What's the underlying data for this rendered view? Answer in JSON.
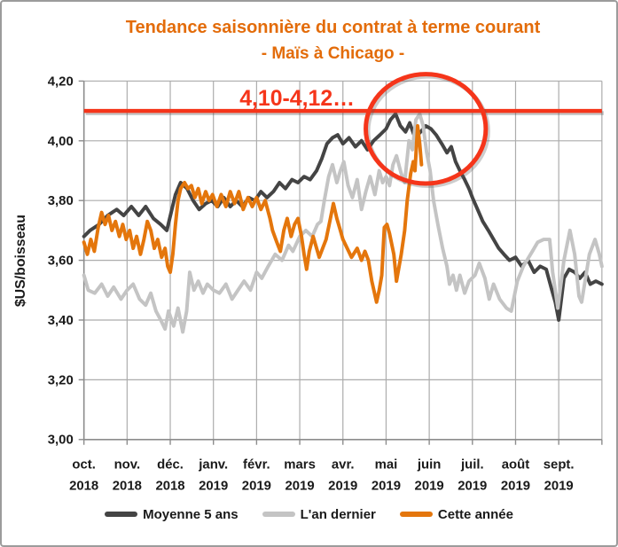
{
  "chart_data": {
    "type": "line",
    "title": "Tendance saisonnière du contrat à terme courant",
    "subtitle": "- Maïs à Chicago -",
    "title_color": "#E36C0A",
    "ylabel": "$US/boisseau",
    "ylim": [
      3.0,
      4.2
    ],
    "ytick_step": 0.2,
    "ytick_labels": [
      "4,20",
      "4,00",
      "3,80",
      "3,60",
      "3,40",
      "3,20",
      "3,00"
    ],
    "x_unit": "months (oct. 2018 → sept. 2019)",
    "x_months": [
      "oct.",
      "nov.",
      "déc.",
      "janv.",
      "févr.",
      "mars",
      "avr.",
      "mai",
      "juin",
      "juil.",
      "août",
      "sept."
    ],
    "x_years": [
      "2018",
      "2018",
      "2018",
      "2019",
      "2019",
      "2019",
      "2019",
      "2019",
      "2019",
      "2019",
      "2019",
      "2019"
    ],
    "grid": true,
    "legend_position": "bottom",
    "grid_color": "#ACACAC",
    "axis_color": "#8C8C8C",
    "text_color": "#1a1a1a",
    "reference_line": {
      "label": "4,10-4,12…",
      "value": 4.1,
      "color": "#F5351A"
    },
    "highlight_ellipse": {
      "x_center_month": 7.92,
      "y_center_value": 4.04,
      "x_radius_months": 1.39,
      "y_radius_value": 0.183,
      "color": "#F5351A"
    },
    "series": [
      {
        "name": "Moyenne 5 ans",
        "color": "#444444",
        "points": [
          [
            0,
            3.68
          ],
          [
            0.14,
            3.7
          ],
          [
            0.35,
            3.72
          ],
          [
            0.55,
            3.75
          ],
          [
            0.76,
            3.77
          ],
          [
            0.92,
            3.75
          ],
          [
            1.1,
            3.78
          ],
          [
            1.27,
            3.75
          ],
          [
            1.43,
            3.78
          ],
          [
            1.61,
            3.74
          ],
          [
            1.78,
            3.72
          ],
          [
            1.92,
            3.7
          ],
          [
            2.02,
            3.76
          ],
          [
            2.12,
            3.82
          ],
          [
            2.24,
            3.86
          ],
          [
            2.39,
            3.84
          ],
          [
            2.53,
            3.8
          ],
          [
            2.67,
            3.77
          ],
          [
            2.82,
            3.79
          ],
          [
            2.96,
            3.8
          ],
          [
            3.1,
            3.78
          ],
          [
            3.24,
            3.81
          ],
          [
            3.39,
            3.78
          ],
          [
            3.53,
            3.8
          ],
          [
            3.67,
            3.78
          ],
          [
            3.82,
            3.81
          ],
          [
            3.96,
            3.8
          ],
          [
            4.1,
            3.83
          ],
          [
            4.24,
            3.81
          ],
          [
            4.39,
            3.83
          ],
          [
            4.53,
            3.86
          ],
          [
            4.67,
            3.84
          ],
          [
            4.82,
            3.87
          ],
          [
            4.96,
            3.86
          ],
          [
            5.1,
            3.88
          ],
          [
            5.24,
            3.87
          ],
          [
            5.39,
            3.9
          ],
          [
            5.51,
            3.94
          ],
          [
            5.63,
            3.99
          ],
          [
            5.76,
            4.01
          ],
          [
            5.88,
            4.02
          ],
          [
            6.0,
            3.99
          ],
          [
            6.14,
            4.01
          ],
          [
            6.29,
            3.98
          ],
          [
            6.43,
            4.0
          ],
          [
            6.57,
            3.97
          ],
          [
            6.71,
            4.0
          ],
          [
            6.86,
            4.02
          ],
          [
            7.0,
            4.04
          ],
          [
            7.1,
            4.07
          ],
          [
            7.22,
            4.09
          ],
          [
            7.33,
            4.05
          ],
          [
            7.45,
            4.03
          ],
          [
            7.55,
            4.06
          ],
          [
            7.67,
            4.01
          ],
          [
            7.8,
            4.03
          ],
          [
            7.92,
            4.05
          ],
          [
            8.04,
            4.04
          ],
          [
            8.16,
            4.02
          ],
          [
            8.29,
            3.99
          ],
          [
            8.41,
            3.96
          ],
          [
            8.51,
            3.98
          ],
          [
            8.61,
            3.93
          ],
          [
            8.71,
            3.9
          ],
          [
            8.82,
            3.87
          ],
          [
            8.92,
            3.84
          ],
          [
            9.0,
            3.81
          ],
          [
            9.12,
            3.77
          ],
          [
            9.24,
            3.73
          ],
          [
            9.37,
            3.7
          ],
          [
            9.49,
            3.67
          ],
          [
            9.61,
            3.64
          ],
          [
            9.73,
            3.62
          ],
          [
            9.86,
            3.6
          ],
          [
            10.0,
            3.61
          ],
          [
            10.14,
            3.58
          ],
          [
            10.29,
            3.6
          ],
          [
            10.43,
            3.56
          ],
          [
            10.57,
            3.58
          ],
          [
            10.71,
            3.57
          ],
          [
            10.84,
            3.5
          ],
          [
            10.92,
            3.46
          ],
          [
            11.0,
            3.4
          ],
          [
            11.12,
            3.54
          ],
          [
            11.24,
            3.57
          ],
          [
            11.37,
            3.56
          ],
          [
            11.49,
            3.54
          ],
          [
            11.61,
            3.56
          ],
          [
            11.73,
            3.52
          ],
          [
            11.86,
            3.53
          ],
          [
            12.0,
            3.52
          ]
        ]
      },
      {
        "name": "L'an dernier",
        "color": "#C4C4C4",
        "points": [
          [
            0,
            3.55
          ],
          [
            0.1,
            3.5
          ],
          [
            0.25,
            3.49
          ],
          [
            0.41,
            3.52
          ],
          [
            0.55,
            3.48
          ],
          [
            0.69,
            3.51
          ],
          [
            0.86,
            3.47
          ],
          [
            1.0,
            3.5
          ],
          [
            1.14,
            3.52
          ],
          [
            1.29,
            3.47
          ],
          [
            1.43,
            3.45
          ],
          [
            1.55,
            3.49
          ],
          [
            1.67,
            3.43
          ],
          [
            1.78,
            3.4
          ],
          [
            1.88,
            3.37
          ],
          [
            1.96,
            3.43
          ],
          [
            2.08,
            3.38
          ],
          [
            2.18,
            3.44
          ],
          [
            2.29,
            3.36
          ],
          [
            2.38,
            3.43
          ],
          [
            2.45,
            3.56
          ],
          [
            2.55,
            3.5
          ],
          [
            2.65,
            3.53
          ],
          [
            2.76,
            3.49
          ],
          [
            2.86,
            3.52
          ],
          [
            3.0,
            3.5
          ],
          [
            3.14,
            3.49
          ],
          [
            3.29,
            3.52
          ],
          [
            3.43,
            3.47
          ],
          [
            3.57,
            3.5
          ],
          [
            3.71,
            3.53
          ],
          [
            3.86,
            3.5
          ],
          [
            4.0,
            3.56
          ],
          [
            4.12,
            3.54
          ],
          [
            4.27,
            3.58
          ],
          [
            4.43,
            3.62
          ],
          [
            4.59,
            3.6
          ],
          [
            4.74,
            3.65
          ],
          [
            4.84,
            3.63
          ],
          [
            5.0,
            3.68
          ],
          [
            5.14,
            3.7
          ],
          [
            5.29,
            3.68
          ],
          [
            5.41,
            3.72
          ],
          [
            5.49,
            3.73
          ],
          [
            5.57,
            3.8
          ],
          [
            5.67,
            3.88
          ],
          [
            5.76,
            3.92
          ],
          [
            5.86,
            3.86
          ],
          [
            5.94,
            3.9
          ],
          [
            6.02,
            3.93
          ],
          [
            6.12,
            3.85
          ],
          [
            6.22,
            3.81
          ],
          [
            6.33,
            3.87
          ],
          [
            6.43,
            3.77
          ],
          [
            6.53,
            3.83
          ],
          [
            6.63,
            3.88
          ],
          [
            6.74,
            3.82
          ],
          [
            6.84,
            3.9
          ],
          [
            6.92,
            3.86
          ],
          [
            7.0,
            3.88
          ],
          [
            7.08,
            3.85
          ],
          [
            7.16,
            3.92
          ],
          [
            7.24,
            3.95
          ],
          [
            7.35,
            3.89
          ],
          [
            7.43,
            3.86
          ],
          [
            7.53,
            4.0
          ],
          [
            7.61,
            3.97
          ],
          [
            7.69,
            4.07
          ],
          [
            7.78,
            4.09
          ],
          [
            7.86,
            4.05
          ],
          [
            7.94,
            3.96
          ],
          [
            8.02,
            3.9
          ],
          [
            8.1,
            3.8
          ],
          [
            8.2,
            3.72
          ],
          [
            8.31,
            3.64
          ],
          [
            8.41,
            3.58
          ],
          [
            8.47,
            3.52
          ],
          [
            8.55,
            3.55
          ],
          [
            8.63,
            3.5
          ],
          [
            8.71,
            3.55
          ],
          [
            8.82,
            3.49
          ],
          [
            8.92,
            3.53
          ],
          [
            9.06,
            3.55
          ],
          [
            9.16,
            3.59
          ],
          [
            9.29,
            3.54
          ],
          [
            9.39,
            3.47
          ],
          [
            9.49,
            3.52
          ],
          [
            9.63,
            3.47
          ],
          [
            9.79,
            3.44
          ],
          [
            9.9,
            3.43
          ],
          [
            10.04,
            3.53
          ],
          [
            10.18,
            3.58
          ],
          [
            10.39,
            3.63
          ],
          [
            10.51,
            3.66
          ],
          [
            10.65,
            3.67
          ],
          [
            10.79,
            3.67
          ],
          [
            10.86,
            3.56
          ],
          [
            10.98,
            3.44
          ],
          [
            11.12,
            3.6
          ],
          [
            11.26,
            3.7
          ],
          [
            11.37,
            3.62
          ],
          [
            11.47,
            3.48
          ],
          [
            11.53,
            3.46
          ],
          [
            11.71,
            3.62
          ],
          [
            11.84,
            3.67
          ],
          [
            11.94,
            3.62
          ],
          [
            12.0,
            3.58
          ]
        ]
      },
      {
        "name": "Cette année",
        "color": "#E4760C",
        "points": [
          [
            0,
            3.66
          ],
          [
            0.08,
            3.62
          ],
          [
            0.16,
            3.67
          ],
          [
            0.24,
            3.63
          ],
          [
            0.33,
            3.71
          ],
          [
            0.41,
            3.76
          ],
          [
            0.49,
            3.72
          ],
          [
            0.57,
            3.75
          ],
          [
            0.65,
            3.7
          ],
          [
            0.73,
            3.73
          ],
          [
            0.82,
            3.68
          ],
          [
            0.9,
            3.72
          ],
          [
            0.98,
            3.67
          ],
          [
            1.06,
            3.7
          ],
          [
            1.14,
            3.64
          ],
          [
            1.22,
            3.68
          ],
          [
            1.31,
            3.62
          ],
          [
            1.39,
            3.67
          ],
          [
            1.47,
            3.73
          ],
          [
            1.55,
            3.7
          ],
          [
            1.63,
            3.64
          ],
          [
            1.71,
            3.67
          ],
          [
            1.8,
            3.61
          ],
          [
            1.88,
            3.64
          ],
          [
            1.94,
            3.58
          ],
          [
            2.0,
            3.56
          ],
          [
            2.06,
            3.62
          ],
          [
            2.12,
            3.72
          ],
          [
            2.18,
            3.8
          ],
          [
            2.24,
            3.84
          ],
          [
            2.33,
            3.86
          ],
          [
            2.41,
            3.84
          ],
          [
            2.49,
            3.85
          ],
          [
            2.57,
            3.81
          ],
          [
            2.65,
            3.84
          ],
          [
            2.73,
            3.79
          ],
          [
            2.82,
            3.83
          ],
          [
            2.9,
            3.8
          ],
          [
            2.98,
            3.82
          ],
          [
            3.08,
            3.78
          ],
          [
            3.18,
            3.82
          ],
          [
            3.29,
            3.78
          ],
          [
            3.39,
            3.83
          ],
          [
            3.49,
            3.79
          ],
          [
            3.59,
            3.83
          ],
          [
            3.69,
            3.77
          ],
          [
            3.8,
            3.81
          ],
          [
            3.9,
            3.78
          ],
          [
            4.0,
            3.81
          ],
          [
            4.1,
            3.77
          ],
          [
            4.2,
            3.8
          ],
          [
            4.31,
            3.74
          ],
          [
            4.37,
            3.7
          ],
          [
            4.47,
            3.66
          ],
          [
            4.55,
            3.63
          ],
          [
            4.63,
            3.7
          ],
          [
            4.71,
            3.74
          ],
          [
            4.8,
            3.68
          ],
          [
            4.88,
            3.72
          ],
          [
            4.96,
            3.74
          ],
          [
            5.04,
            3.68
          ],
          [
            5.1,
            3.62
          ],
          [
            5.16,
            3.57
          ],
          [
            5.22,
            3.63
          ],
          [
            5.31,
            3.68
          ],
          [
            5.45,
            3.61
          ],
          [
            5.53,
            3.64
          ],
          [
            5.61,
            3.67
          ],
          [
            5.71,
            3.74
          ],
          [
            5.78,
            3.79
          ],
          [
            5.86,
            3.74
          ],
          [
            5.94,
            3.7
          ],
          [
            6.0,
            3.67
          ],
          [
            6.1,
            3.64
          ],
          [
            6.2,
            3.61
          ],
          [
            6.33,
            3.64
          ],
          [
            6.43,
            3.6
          ],
          [
            6.51,
            3.63
          ],
          [
            6.59,
            3.6
          ],
          [
            6.67,
            3.53
          ],
          [
            6.78,
            3.46
          ],
          [
            6.84,
            3.5
          ],
          [
            6.9,
            3.55
          ],
          [
            6.96,
            3.71
          ],
          [
            7.02,
            3.72
          ],
          [
            7.08,
            3.69
          ],
          [
            7.18,
            3.62
          ],
          [
            7.24,
            3.53
          ],
          [
            7.35,
            3.62
          ],
          [
            7.43,
            3.7
          ],
          [
            7.49,
            3.8
          ],
          [
            7.57,
            3.89
          ],
          [
            7.63,
            3.93
          ],
          [
            7.67,
            3.9
          ],
          [
            7.73,
            4.05
          ],
          [
            7.78,
            3.99
          ],
          [
            7.82,
            3.92
          ]
        ]
      }
    ]
  }
}
